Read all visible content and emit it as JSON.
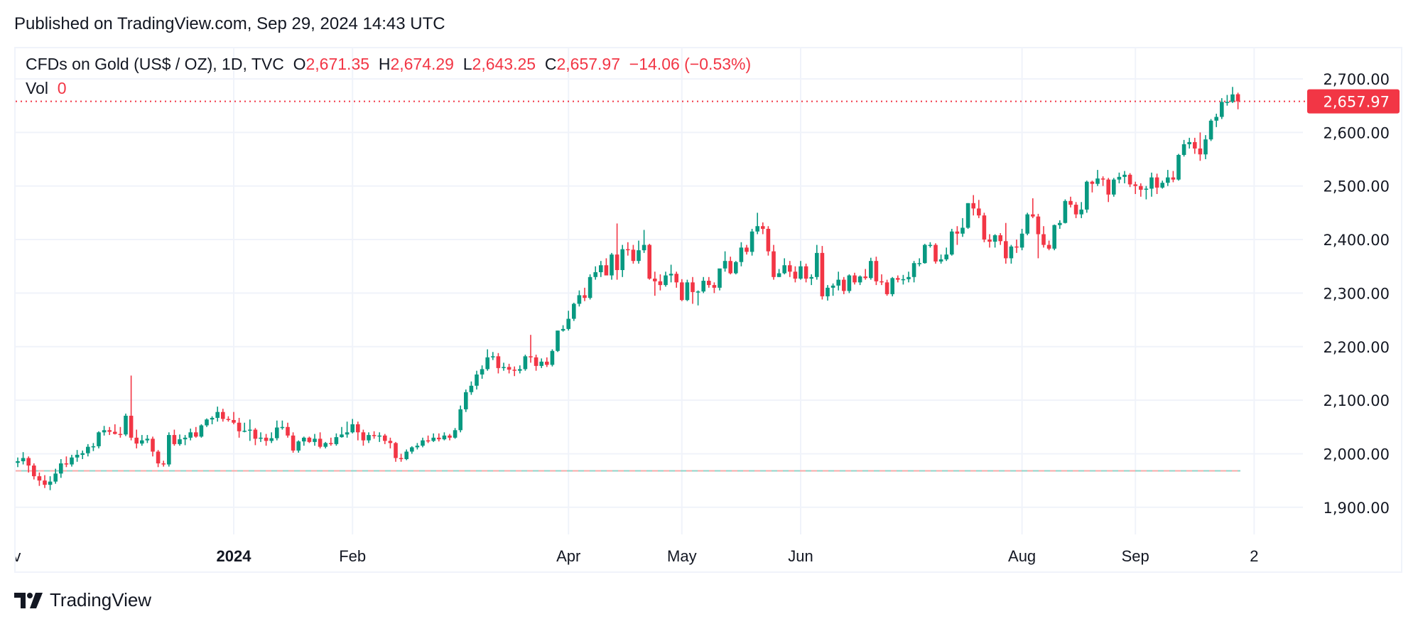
{
  "header": {
    "published": "Published on TradingView.com, Sep 29, 2024 14:43 UTC"
  },
  "legend": {
    "symbol": "CFDs on Gold (US$ / OZ), 1D, TVC",
    "open_label": "O",
    "open": "2,671.35",
    "high_label": "H",
    "high": "2,674.29",
    "low_label": "L",
    "low": "2,643.25",
    "close_label": "C",
    "close": "2,657.97",
    "change": "−14.06 (−0.53%)",
    "vol_label": "Vol",
    "vol": "0"
  },
  "footer": {
    "logo_text": "TradingView"
  },
  "colors": {
    "up": "#089981",
    "down": "#f23645",
    "grid": "#f0f3fa",
    "text": "#131722"
  },
  "chart_data": {
    "type": "candlestick",
    "interval": "1D",
    "ylim": [
      1850,
      2730
    ],
    "y_ticks": [
      "2,700.00",
      "2,600.00",
      "2,500.00",
      "2,400.00",
      "2,300.00",
      "2,200.00",
      "2,100.00",
      "2,000.00",
      "1,900.00"
    ],
    "y_tick_values": [
      2700,
      2600,
      2500,
      2400,
      2300,
      2200,
      2100,
      2000,
      1900
    ],
    "last_price": 2657.97,
    "last_price_label": "2,657.97",
    "reference_line": 1968,
    "grid": true,
    "x_ticks": [
      {
        "label": "Nov",
        "bar": -2,
        "bold": false,
        "grid": false
      },
      {
        "label": "2024",
        "bar": 40,
        "bold": true,
        "grid": true
      },
      {
        "label": "Feb",
        "bar": 62,
        "bold": false,
        "grid": true
      },
      {
        "label": "Apr",
        "bar": 102,
        "bold": false,
        "grid": true
      },
      {
        "label": "May",
        "bar": 123,
        "bold": false,
        "grid": true
      },
      {
        "label": "Jun",
        "bar": 145,
        "bold": false,
        "grid": true
      },
      {
        "label": "Aug",
        "bar": 186,
        "bold": false,
        "grid": true
      },
      {
        "label": "Sep",
        "bar": 207,
        "bold": false,
        "grid": true
      },
      {
        "label": "2",
        "bar": 229,
        "bold": false,
        "grid": true
      }
    ],
    "ohlc": [
      [
        1983,
        1993,
        1975,
        1986
      ],
      [
        1986,
        2003,
        1980,
        1992
      ],
      [
        1992,
        1995,
        1965,
        1978
      ],
      [
        1978,
        1982,
        1952,
        1958
      ],
      [
        1958,
        1965,
        1940,
        1950
      ],
      [
        1950,
        1960,
        1936,
        1942
      ],
      [
        1942,
        1958,
        1932,
        1948
      ],
      [
        1948,
        1972,
        1944,
        1963
      ],
      [
        1963,
        1990,
        1955,
        1982
      ],
      [
        1982,
        1995,
        1975,
        1980
      ],
      [
        1980,
        1998,
        1976,
        1993
      ],
      [
        1993,
        2007,
        1985,
        1998
      ],
      [
        1998,
        2006,
        1990,
        2001
      ],
      [
        2001,
        2018,
        1995,
        2013
      ],
      [
        2013,
        2020,
        2005,
        2014
      ],
      [
        2014,
        2042,
        2010,
        2040
      ],
      [
        2040,
        2052,
        2034,
        2044
      ],
      [
        2044,
        2050,
        2035,
        2041
      ],
      [
        2041,
        2055,
        2036,
        2037
      ],
      [
        2037,
        2050,
        2030,
        2036
      ],
      [
        2036,
        2075,
        2033,
        2071
      ],
      [
        2071,
        2146,
        2025,
        2030
      ],
      [
        2030,
        2045,
        2010,
        2019
      ],
      [
        2019,
        2035,
        2015,
        2025
      ],
      [
        2025,
        2035,
        2020,
        2028
      ],
      [
        2028,
        2032,
        1995,
        2004
      ],
      [
        2004,
        2007,
        1975,
        1982
      ],
      [
        1982,
        1987,
        1976,
        1980
      ],
      [
        1980,
        2040,
        1976,
        2035
      ],
      [
        2035,
        2045,
        2015,
        2018
      ],
      [
        2018,
        2036,
        2015,
        2027
      ],
      [
        2027,
        2035,
        2016,
        2030
      ],
      [
        2030,
        2047,
        2025,
        2040
      ],
      [
        2040,
        2050,
        2030,
        2032
      ],
      [
        2032,
        2055,
        2030,
        2053
      ],
      [
        2053,
        2066,
        2050,
        2064
      ],
      [
        2064,
        2070,
        2055,
        2067
      ],
      [
        2067,
        2088,
        2060,
        2078
      ],
      [
        2078,
        2084,
        2060,
        2065
      ],
      [
        2065,
        2070,
        2060,
        2063
      ],
      [
        2063,
        2078,
        2055,
        2058
      ],
      [
        2058,
        2067,
        2030,
        2042
      ],
      [
        2042,
        2058,
        2040,
        2043
      ],
      [
        2043,
        2064,
        2024,
        2045
      ],
      [
        2045,
        2048,
        2016,
        2028
      ],
      [
        2028,
        2040,
        2022,
        2030
      ],
      [
        2030,
        2037,
        2015,
        2024
      ],
      [
        2024,
        2040,
        2020,
        2029
      ],
      [
        2029,
        2062,
        2025,
        2049
      ],
      [
        2049,
        2062,
        2045,
        2050
      ],
      [
        2050,
        2058,
        2030,
        2034
      ],
      [
        2034,
        2040,
        2002,
        2006
      ],
      [
        2006,
        2025,
        2002,
        2023
      ],
      [
        2023,
        2032,
        2015,
        2030
      ],
      [
        2030,
        2032,
        2020,
        2022
      ],
      [
        2022,
        2037,
        2015,
        2028
      ],
      [
        2028,
        2040,
        2010,
        2013
      ],
      [
        2013,
        2022,
        2010,
        2020
      ],
      [
        2020,
        2030,
        2015,
        2018
      ],
      [
        2018,
        2038,
        2015,
        2031
      ],
      [
        2031,
        2050,
        2030,
        2036
      ],
      [
        2036,
        2060,
        2030,
        2040
      ],
      [
        2040,
        2065,
        2038,
        2055
      ],
      [
        2055,
        2060,
        2025,
        2040
      ],
      [
        2040,
        2045,
        2015,
        2025
      ],
      [
        2025,
        2040,
        2020,
        2035
      ],
      [
        2035,
        2042,
        2028,
        2034
      ],
      [
        2034,
        2040,
        2022,
        2034
      ],
      [
        2034,
        2037,
        2018,
        2024
      ],
      [
        2024,
        2030,
        2010,
        2020
      ],
      [
        2020,
        2022,
        1985,
        1992
      ],
      [
        1992,
        2000,
        1985,
        1990
      ],
      [
        1990,
        2008,
        1988,
        2004
      ],
      [
        2004,
        2014,
        2000,
        2012
      ],
      [
        2012,
        2020,
        2008,
        2015
      ],
      [
        2015,
        2030,
        2012,
        2025
      ],
      [
        2025,
        2034,
        2020,
        2024
      ],
      [
        2024,
        2038,
        2022,
        2030
      ],
      [
        2030,
        2038,
        2023,
        2027
      ],
      [
        2027,
        2040,
        2025,
        2034
      ],
      [
        2034,
        2037,
        2025,
        2030
      ],
      [
        2030,
        2048,
        2028,
        2044
      ],
      [
        2044,
        2090,
        2040,
        2083
      ],
      [
        2083,
        2120,
        2078,
        2115
      ],
      [
        2115,
        2135,
        2110,
        2127
      ],
      [
        2127,
        2155,
        2120,
        2148
      ],
      [
        2148,
        2165,
        2140,
        2158
      ],
      [
        2158,
        2195,
        2155,
        2180
      ],
      [
        2180,
        2190,
        2175,
        2182
      ],
      [
        2182,
        2188,
        2150,
        2160
      ],
      [
        2160,
        2170,
        2155,
        2162
      ],
      [
        2162,
        2168,
        2150,
        2157
      ],
      [
        2157,
        2163,
        2145,
        2155
      ],
      [
        2155,
        2165,
        2150,
        2158
      ],
      [
        2158,
        2185,
        2155,
        2182
      ],
      [
        2182,
        2222,
        2170,
        2180
      ],
      [
        2180,
        2185,
        2155,
        2164
      ],
      [
        2164,
        2178,
        2160,
        2172
      ],
      [
        2172,
        2180,
        2162,
        2166
      ],
      [
        2166,
        2195,
        2163,
        2192
      ],
      [
        2192,
        2230,
        2190,
        2230
      ],
      [
        2230,
        2240,
        2228,
        2233
      ],
      [
        2233,
        2267,
        2230,
        2252
      ],
      [
        2252,
        2282,
        2248,
        2280
      ],
      [
        2280,
        2305,
        2275,
        2296
      ],
      [
        2296,
        2310,
        2285,
        2291
      ],
      [
        2291,
        2335,
        2288,
        2330
      ],
      [
        2330,
        2350,
        2325,
        2339
      ],
      [
        2339,
        2360,
        2330,
        2352
      ],
      [
        2352,
        2365,
        2335,
        2333
      ],
      [
        2333,
        2375,
        2325,
        2372
      ],
      [
        2372,
        2430,
        2325,
        2343
      ],
      [
        2343,
        2390,
        2330,
        2382
      ],
      [
        2382,
        2395,
        2370,
        2381
      ],
      [
        2381,
        2390,
        2355,
        2360
      ],
      [
        2360,
        2398,
        2355,
        2380
      ],
      [
        2380,
        2418,
        2375,
        2390
      ],
      [
        2390,
        2392,
        2325,
        2327
      ],
      [
        2327,
        2340,
        2295,
        2322
      ],
      [
        2322,
        2335,
        2305,
        2315
      ],
      [
        2315,
        2340,
        2312,
        2333
      ],
      [
        2333,
        2353,
        2320,
        2336
      ],
      [
        2336,
        2340,
        2310,
        2320
      ],
      [
        2320,
        2326,
        2285,
        2287
      ],
      [
        2287,
        2325,
        2285,
        2320
      ],
      [
        2320,
        2330,
        2280,
        2302
      ],
      [
        2302,
        2305,
        2277,
        2303
      ],
      [
        2303,
        2330,
        2300,
        2323
      ],
      [
        2323,
        2330,
        2310,
        2315
      ],
      [
        2315,
        2320,
        2300,
        2310
      ],
      [
        2310,
        2345,
        2305,
        2346
      ],
      [
        2346,
        2378,
        2340,
        2360
      ],
      [
        2360,
        2368,
        2335,
        2337
      ],
      [
        2337,
        2360,
        2335,
        2358
      ],
      [
        2358,
        2395,
        2350,
        2385
      ],
      [
        2385,
        2390,
        2372,
        2377
      ],
      [
        2377,
        2420,
        2370,
        2415
      ],
      [
        2415,
        2450,
        2410,
        2425
      ],
      [
        2425,
        2432,
        2410,
        2420
      ],
      [
        2420,
        2425,
        2370,
        2378
      ],
      [
        2378,
        2390,
        2325,
        2330
      ],
      [
        2330,
        2345,
        2330,
        2337
      ],
      [
        2337,
        2365,
        2335,
        2352
      ],
      [
        2352,
        2360,
        2330,
        2340
      ],
      [
        2340,
        2350,
        2320,
        2327
      ],
      [
        2327,
        2360,
        2325,
        2350
      ],
      [
        2350,
        2355,
        2320,
        2327
      ],
      [
        2327,
        2335,
        2315,
        2330
      ],
      [
        2330,
        2390,
        2325,
        2375
      ],
      [
        2375,
        2388,
        2288,
        2294
      ],
      [
        2294,
        2315,
        2286,
        2310
      ],
      [
        2310,
        2318,
        2295,
        2314
      ],
      [
        2314,
        2340,
        2305,
        2325
      ],
      [
        2325,
        2330,
        2298,
        2304
      ],
      [
        2304,
        2335,
        2300,
        2333
      ],
      [
        2333,
        2338,
        2316,
        2320
      ],
      [
        2320,
        2333,
        2315,
        2331
      ],
      [
        2331,
        2345,
        2325,
        2328
      ],
      [
        2328,
        2366,
        2325,
        2360
      ],
      [
        2360,
        2368,
        2315,
        2322
      ],
      [
        2322,
        2335,
        2315,
        2320
      ],
      [
        2320,
        2325,
        2295,
        2298
      ],
      [
        2298,
        2330,
        2294,
        2328
      ],
      [
        2328,
        2333,
        2320,
        2325
      ],
      [
        2325,
        2334,
        2316,
        2326
      ],
      [
        2326,
        2340,
        2320,
        2330
      ],
      [
        2330,
        2360,
        2320,
        2356
      ],
      [
        2356,
        2365,
        2350,
        2356
      ],
      [
        2356,
        2392,
        2355,
        2390
      ],
      [
        2390,
        2395,
        2385,
        2390
      ],
      [
        2390,
        2393,
        2355,
        2359
      ],
      [
        2359,
        2372,
        2355,
        2363
      ],
      [
        2363,
        2385,
        2360,
        2372
      ],
      [
        2372,
        2420,
        2370,
        2415
      ],
      [
        2415,
        2425,
        2390,
        2411
      ],
      [
        2411,
        2440,
        2405,
        2422
      ],
      [
        2422,
        2468,
        2420,
        2468
      ],
      [
        2468,
        2483,
        2445,
        2458
      ],
      [
        2458,
        2474,
        2440,
        2445
      ],
      [
        2445,
        2450,
        2395,
        2400
      ],
      [
        2400,
        2410,
        2385,
        2396
      ],
      [
        2396,
        2410,
        2385,
        2408
      ],
      [
        2408,
        2412,
        2390,
        2397
      ],
      [
        2397,
        2431,
        2355,
        2365
      ],
      [
        2365,
        2390,
        2355,
        2387
      ],
      [
        2387,
        2400,
        2375,
        2385
      ],
      [
        2385,
        2420,
        2380,
        2411
      ],
      [
        2411,
        2450,
        2408,
        2447
      ],
      [
        2447,
        2477,
        2440,
        2443
      ],
      [
        2443,
        2448,
        2365,
        2410
      ],
      [
        2410,
        2425,
        2385,
        2390
      ],
      [
        2390,
        2398,
        2380,
        2383
      ],
      [
        2383,
        2428,
        2380,
        2427
      ],
      [
        2427,
        2436,
        2420,
        2431
      ],
      [
        2431,
        2475,
        2430,
        2472
      ],
      [
        2472,
        2480,
        2460,
        2465
      ],
      [
        2465,
        2470,
        2440,
        2447
      ],
      [
        2447,
        2470,
        2440,
        2456
      ],
      [
        2456,
        2510,
        2450,
        2508
      ],
      [
        2508,
        2510,
        2488,
        2504
      ],
      [
        2504,
        2530,
        2500,
        2514
      ],
      [
        2514,
        2518,
        2500,
        2512
      ],
      [
        2512,
        2515,
        2470,
        2484
      ],
      [
        2484,
        2515,
        2480,
        2512
      ],
      [
        2512,
        2525,
        2505,
        2517
      ],
      [
        2517,
        2528,
        2505,
        2521
      ],
      [
        2521,
        2524,
        2498,
        2503
      ],
      [
        2503,
        2508,
        2485,
        2500
      ],
      [
        2500,
        2505,
        2480,
        2493
      ],
      [
        2493,
        2500,
        2475,
        2495
      ],
      [
        2495,
        2525,
        2480,
        2516
      ],
      [
        2516,
        2523,
        2485,
        2497
      ],
      [
        2497,
        2510,
        2495,
        2506
      ],
      [
        2506,
        2530,
        2500,
        2516
      ],
      [
        2516,
        2528,
        2507,
        2512
      ],
      [
        2512,
        2560,
        2510,
        2558
      ],
      [
        2558,
        2586,
        2555,
        2578
      ],
      [
        2578,
        2590,
        2570,
        2582
      ],
      [
        2582,
        2590,
        2560,
        2570
      ],
      [
        2570,
        2600,
        2547,
        2559
      ],
      [
        2559,
        2595,
        2550,
        2587
      ],
      [
        2587,
        2625,
        2584,
        2622
      ],
      [
        2622,
        2635,
        2610,
        2629
      ],
      [
        2629,
        2664,
        2625,
        2657
      ],
      [
        2657,
        2670,
        2650,
        2657
      ],
      [
        2657,
        2685,
        2655,
        2671
      ],
      [
        2671.35,
        2674.29,
        2643.25,
        2657.97
      ]
    ]
  }
}
